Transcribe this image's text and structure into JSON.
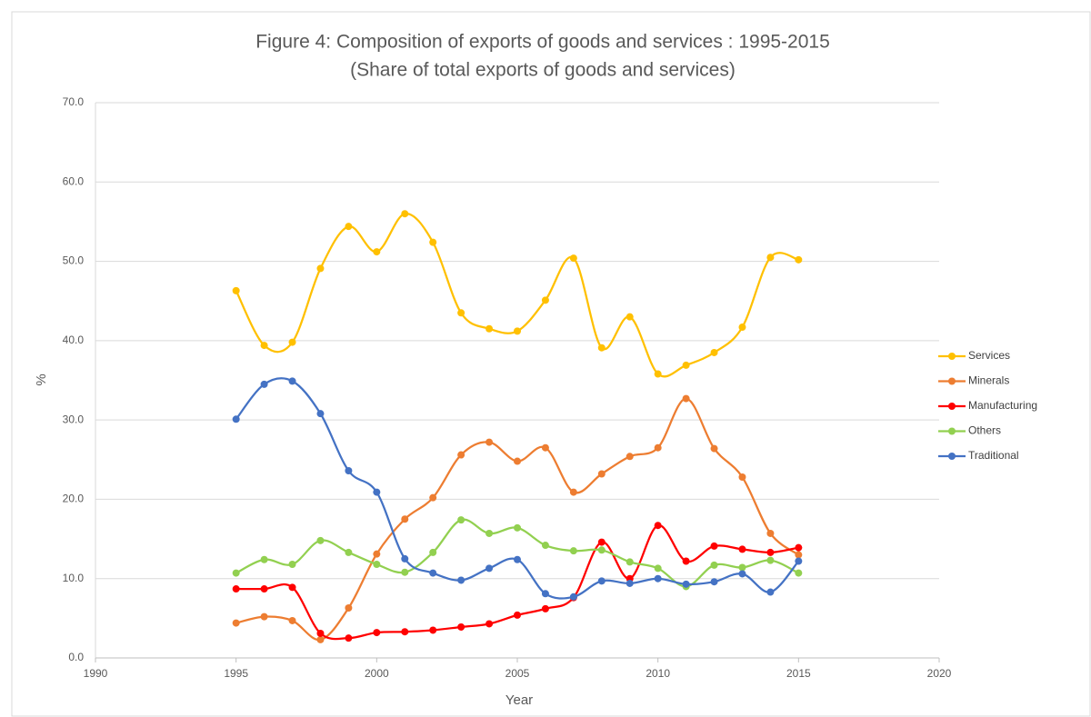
{
  "chart_data": {
    "type": "scatter",
    "title": "Figure 4: Composition of exports of goods and services : 1995-2015",
    "subtitle": "(Share of total exports of goods and services)",
    "x_label": "Year",
    "y_label": "%",
    "x": [
      1995,
      1996,
      1997,
      1998,
      1999,
      2000,
      2001,
      2002,
      2003,
      2004,
      2005,
      2006,
      2007,
      2008,
      2009,
      2010,
      2011,
      2012,
      2013,
      2014,
      2015
    ],
    "series": [
      {
        "name": "Services",
        "color": "#ffc000",
        "values": [
          46.3,
          39.4,
          39.8,
          49.1,
          54.4,
          51.2,
          56.0,
          52.4,
          43.5,
          41.5,
          41.2,
          45.1,
          50.4,
          39.1,
          43.0,
          35.8,
          36.9,
          38.5,
          41.7,
          50.5,
          50.2
        ]
      },
      {
        "name": "Minerals",
        "color": "#ed7d31",
        "values": [
          4.4,
          5.2,
          4.7,
          2.3,
          6.3,
          13.1,
          17.5,
          20.2,
          25.6,
          27.2,
          24.8,
          26.5,
          20.9,
          23.2,
          25.4,
          26.5,
          32.7,
          26.4,
          22.8,
          15.7,
          13.0
        ]
      },
      {
        "name": "Manufacturing",
        "color": "#ff0000",
        "values": [
          8.7,
          8.7,
          8.9,
          3.1,
          2.5,
          3.2,
          3.3,
          3.5,
          3.9,
          4.3,
          5.4,
          6.2,
          7.6,
          14.6,
          10.0,
          16.7,
          12.2,
          14.1,
          13.7,
          13.3,
          13.9
        ]
      },
      {
        "name": "Others",
        "color": "#92d050",
        "values": [
          10.7,
          12.4,
          11.8,
          14.8,
          13.3,
          11.8,
          10.8,
          13.3,
          17.4,
          15.7,
          16.4,
          14.2,
          13.5,
          13.6,
          12.1,
          11.3,
          9.0,
          11.7,
          11.4,
          12.3,
          10.7
        ]
      },
      {
        "name": "Traditional",
        "color": "#4472c4",
        "values": [
          30.1,
          34.5,
          34.9,
          30.8,
          23.6,
          20.9,
          12.5,
          10.7,
          9.8,
          11.3,
          12.4,
          8.1,
          7.7,
          9.7,
          9.4,
          10.0,
          9.3,
          9.6,
          10.6,
          8.3,
          12.2
        ]
      }
    ],
    "xlim": [
      1990,
      2020
    ],
    "xticks": [
      1990,
      1995,
      2000,
      2005,
      2010,
      2015,
      2020
    ],
    "ylim": [
      0,
      70
    ],
    "yticks": [
      {
        "value": 0,
        "label": "0.0"
      },
      {
        "value": 10,
        "label": "10.0"
      },
      {
        "value": 20,
        "label": "20.0"
      },
      {
        "value": 30,
        "label": "30.0"
      },
      {
        "value": 40,
        "label": "40.0"
      },
      {
        "value": 50,
        "label": "50.0"
      },
      {
        "value": 60,
        "label": "60.0"
      },
      {
        "value": 70,
        "label": "70.0"
      }
    ],
    "grid": true,
    "smooth": true,
    "markers": true,
    "legend": "right"
  }
}
